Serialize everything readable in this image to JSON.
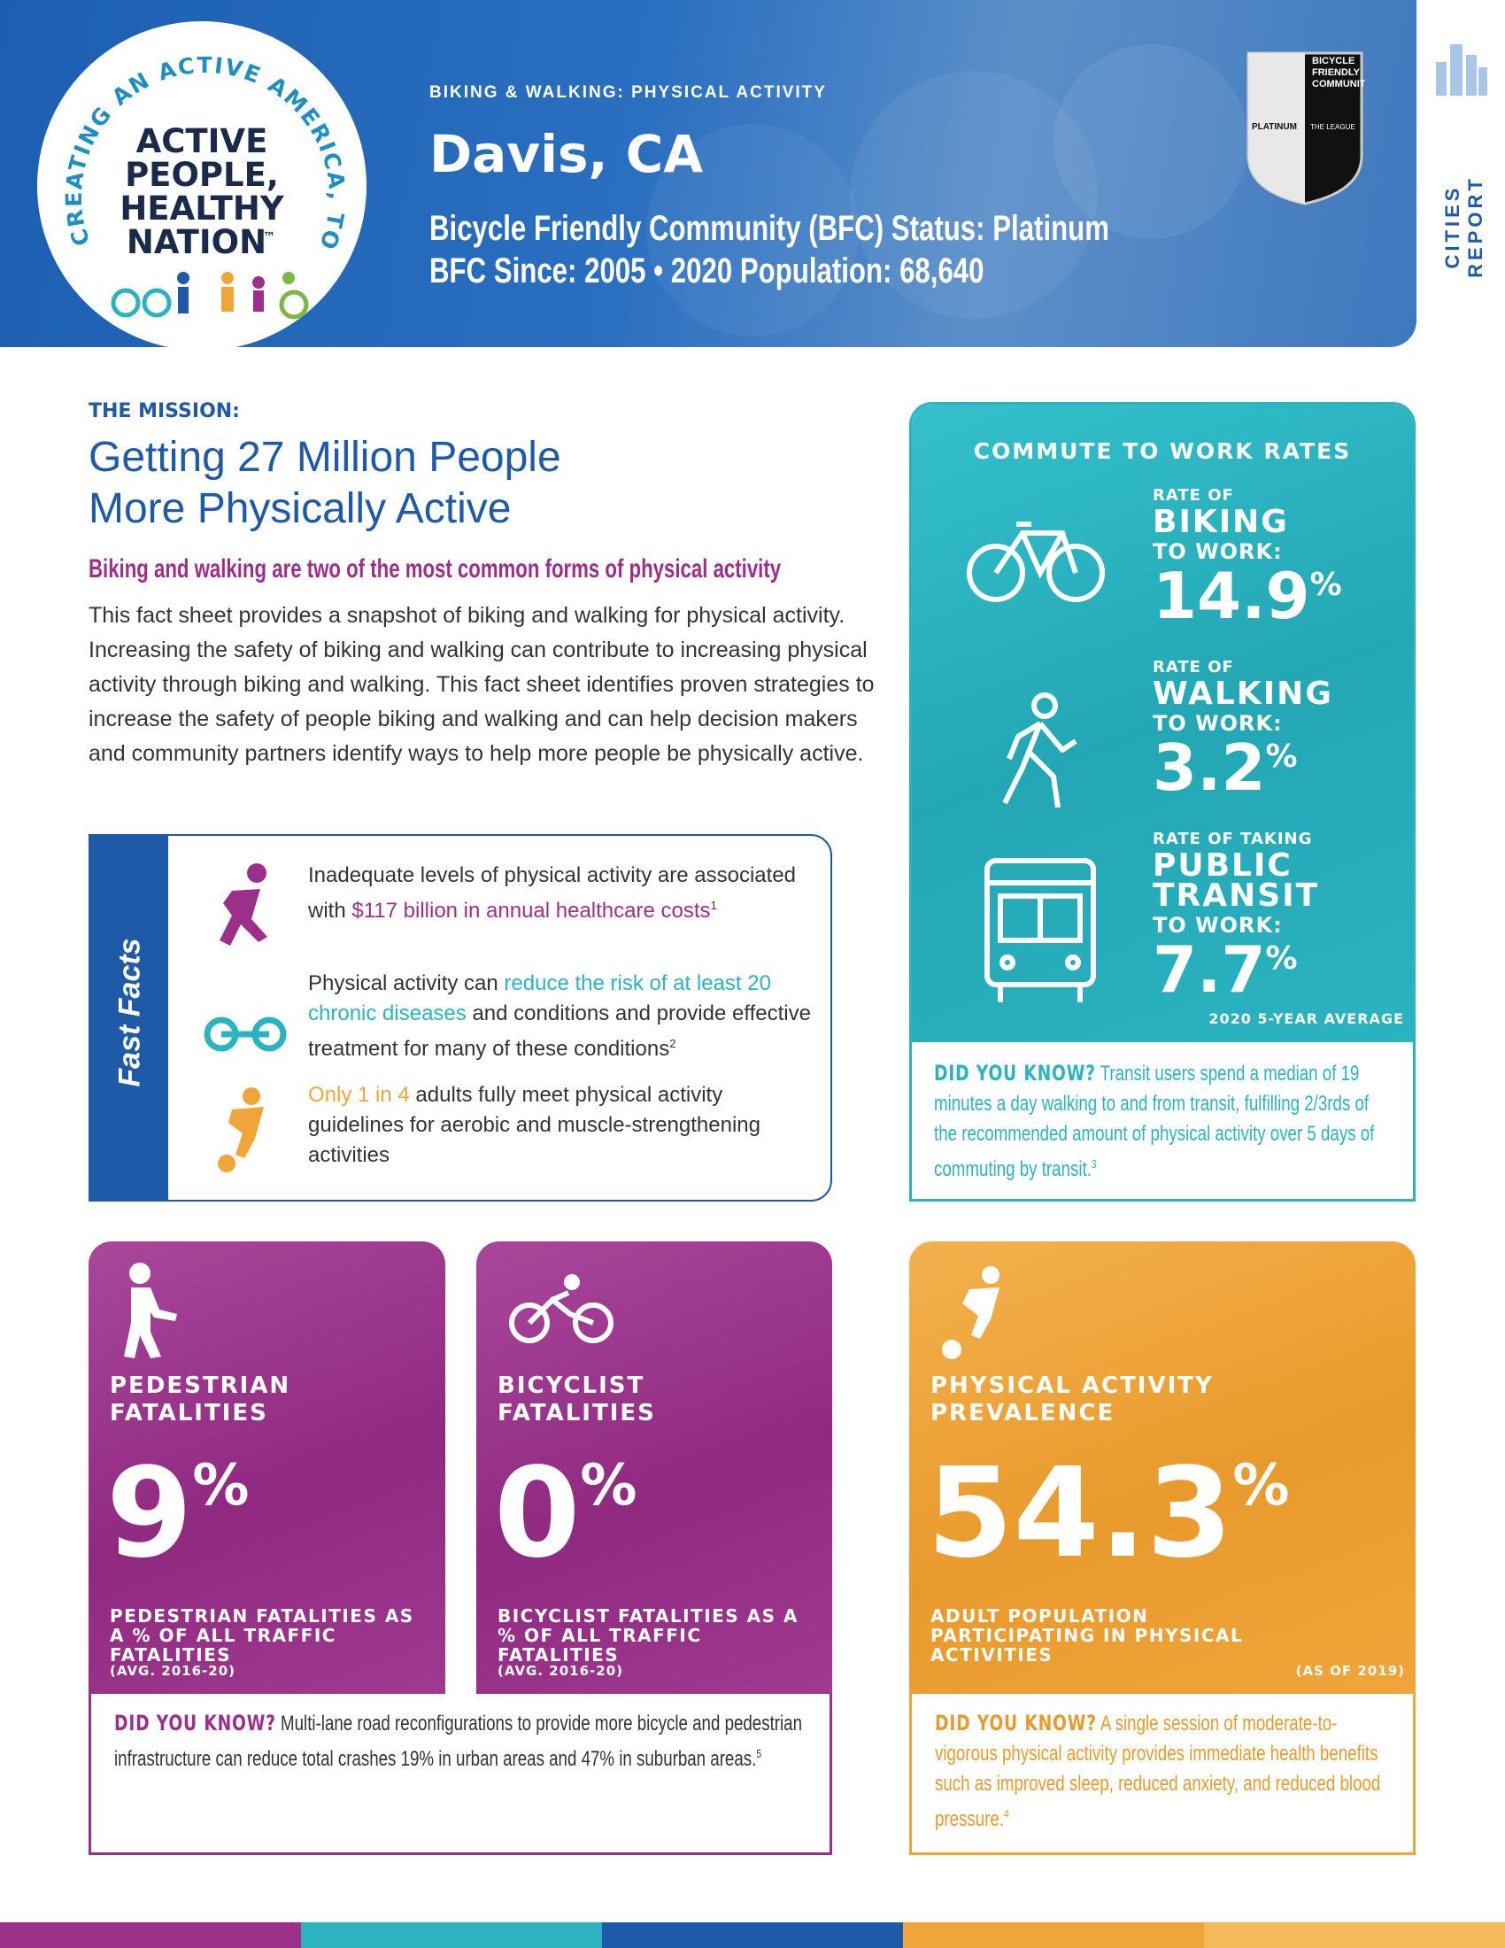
{
  "header": {
    "logo": {
      "arc_text": "CREATING AN ACTIVE AMERICA, TOGETHER",
      "line1": "ACTIVE",
      "line2": "PEOPLE,",
      "line3": "HEALTHY",
      "line4": "NATION",
      "tm": "™"
    },
    "kicker": "BIKING & WALKING: PHYSICAL ACTIVITY",
    "city": "Davis, CA",
    "status": "Bicycle Friendly Community (BFC) Status: Platinum",
    "since": "BFC Since: 2005 • 2020 Population: 68,640",
    "badge": {
      "line1": "BICYCLE",
      "line2": "FRIENDLY",
      "line3": "COMMUNITY",
      "level": "PLATINUM",
      "org": "THE LEAGUE"
    },
    "side_label": "CITIES REPORT"
  },
  "mission": {
    "label": "THE MISSION:",
    "heading_line1": "Getting 27 Million People",
    "heading_line2": "More Physically Active",
    "subhead": "Biking and walking are two of the most common forms of physical activity",
    "body": "This fact sheet provides a snapshot of biking and walking for physical activity. Increasing the safety of biking and walking can contribute to increasing physical activity through biking and walking. This fact sheet identifies proven strategies to increase the safety of people biking and walking and can help decision makers and community partners identify ways to help more people be physically active."
  },
  "fast_facts": {
    "title": "Fast Facts",
    "items": [
      {
        "before": "Inadequate levels of physical activity are associated with",
        "highlight": "$117 billion in annual healthcare costs",
        "footnote": "1"
      },
      {
        "before": "Physical activity can",
        "highlight": "reduce the risk of at least 20 chronic diseases",
        "after": "and conditions and provide effective treatment for many of these conditions",
        "footnote": "2"
      },
      {
        "highlight": "Only 1 in 4",
        "after": "adults fully meet physical activity guidelines for aerobic and muscle-strengthening activities"
      }
    ]
  },
  "commute": {
    "title": "COMMUTE TO WORK RATES",
    "items": [
      {
        "pre": "RATE OF",
        "mode": "BIKING",
        "post": "TO WORK:",
        "value": "14.9",
        "unit": "%"
      },
      {
        "pre": "RATE OF",
        "mode": "WALKING",
        "post": "TO WORK:",
        "value": "3.2",
        "unit": "%"
      },
      {
        "pre": "RATE OF TAKING",
        "mode": "PUBLIC TRANSIT",
        "post": "TO WORK:",
        "value": "7.7",
        "unit": "%"
      }
    ],
    "note": "2020 5-YEAR AVERAGE",
    "did_you_know": {
      "label": "DID YOU KNOW?",
      "text": "Transit users spend a median of 19 minutes a day walking to and from transit, fulfilling 2/3rds of the recommended amount of physical activity over 5 days of commuting by transit.",
      "footnote": "3"
    }
  },
  "fatalities": {
    "cards": [
      {
        "title_line1": "PEDESTRIAN",
        "title_line2": "FATALITIES",
        "value": "9",
        "unit": "%",
        "caption": "PEDESTRIAN FATALITIES AS A % OF ALL TRAFFIC FATALITIES",
        "period": "(AVG. 2016-20)"
      },
      {
        "title_line1": "BICYCLIST",
        "title_line2": "FATALITIES",
        "value": "0",
        "unit": "%",
        "caption": "BICYCLIST FATALITIES AS A % OF ALL TRAFFIC FATALITIES",
        "period": "(AVG. 2016-20)"
      }
    ],
    "did_you_know": {
      "label": "DID YOU KNOW?",
      "text": "Multi-lane road reconfigurations to provide more bicycle and pedestrian infrastructure can reduce total crashes 19% in urban areas and 47% in suburban areas.",
      "footnote": "5"
    }
  },
  "activity": {
    "title_line1": "PHYSICAL ACTIVITY",
    "title_line2": "PREVALENCE",
    "value": "54.3",
    "unit": "%",
    "caption": "ADULT POPULATION PARTICIPATING IN PHYSICAL ACTIVITIES",
    "period": "(AS OF 2019)",
    "did_you_know": {
      "label": "DID YOU KNOW?",
      "text": "A single session of moderate-to-vigorous physical activity provides immediate health benefits such as improved sleep, reduced anxiety, and reduced blood pressure.",
      "footnote": "4"
    }
  }
}
